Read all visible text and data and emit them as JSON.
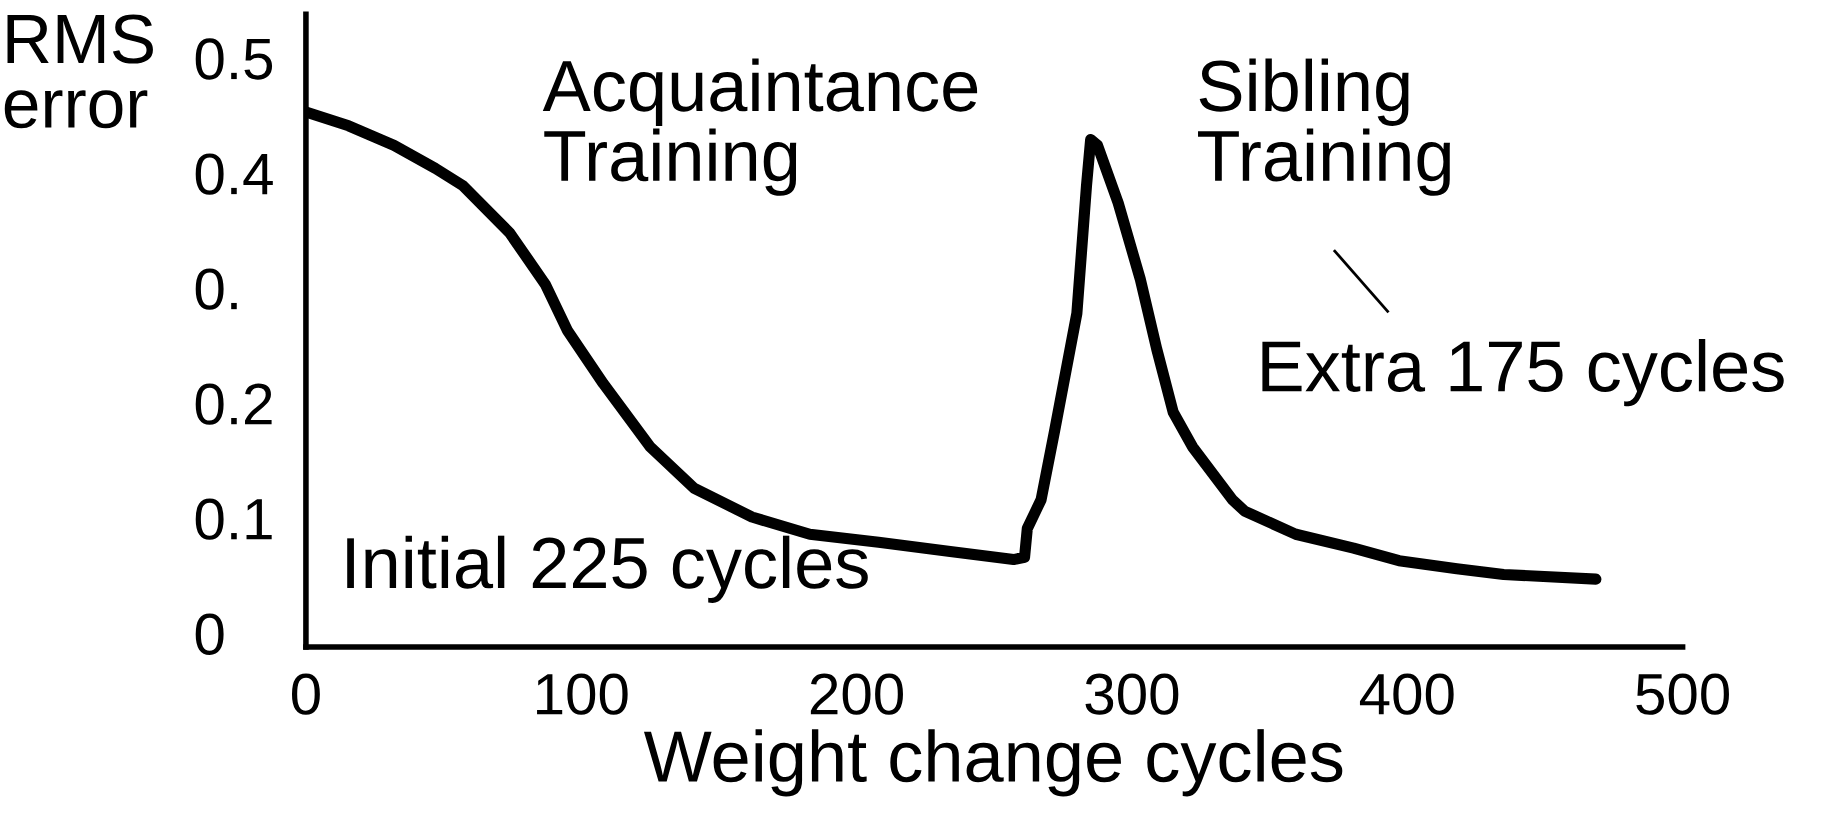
{
  "chart_data": {
    "type": "line",
    "xlabel": "Weight change cycles",
    "ylabel": "RMS\nerror",
    "x": [
      0,
      15.5,
      32,
      47,
      57,
      74,
      87,
      95,
      108,
      125,
      141,
      162,
      183,
      208,
      234,
      257,
      261,
      262,
      267,
      272,
      280,
      283.5,
      285,
      287.5,
      295,
      303,
      309,
      315,
      322,
      336.5,
      341,
      359.5,
      380.5,
      397,
      418,
      435,
      468.5
    ],
    "series": [
      {
        "color": "#000000",
        "values": [
          0.453,
          0.441,
          0.424,
          0.404,
          0.389,
          0.348,
          0.303,
          0.263,
          0.217,
          0.162,
          0.126,
          0.101,
          0.086,
          0.079,
          0.071,
          0.064,
          0.066,
          0.091,
          0.116,
          0.177,
          0.278,
          0.389,
          0.429,
          0.424,
          0.374,
          0.308,
          0.247,
          0.192,
          0.162,
          0.116,
          0.106,
          0.086,
          0.074,
          0.063,
          0.056,
          0.051,
          0.047
        ]
      }
    ],
    "xlim": [
      0,
      500
    ],
    "xticks": [
      0,
      100,
      200,
      300,
      400,
      500
    ],
    "ylim": [
      -0.012,
      0.538
    ],
    "yticks": [
      0,
      0.1,
      0.2,
      {
        "value": 0.3,
        "label": "0."
      },
      0.4,
      0.5
    ],
    "grid": false,
    "legend": false,
    "marker": "none",
    "line_style": "solid",
    "annotations": [
      "Acquaintance\nTraining",
      "Sibling\nTraining",
      "Initial 225 cycles",
      "Extra 175 cycles"
    ]
  }
}
